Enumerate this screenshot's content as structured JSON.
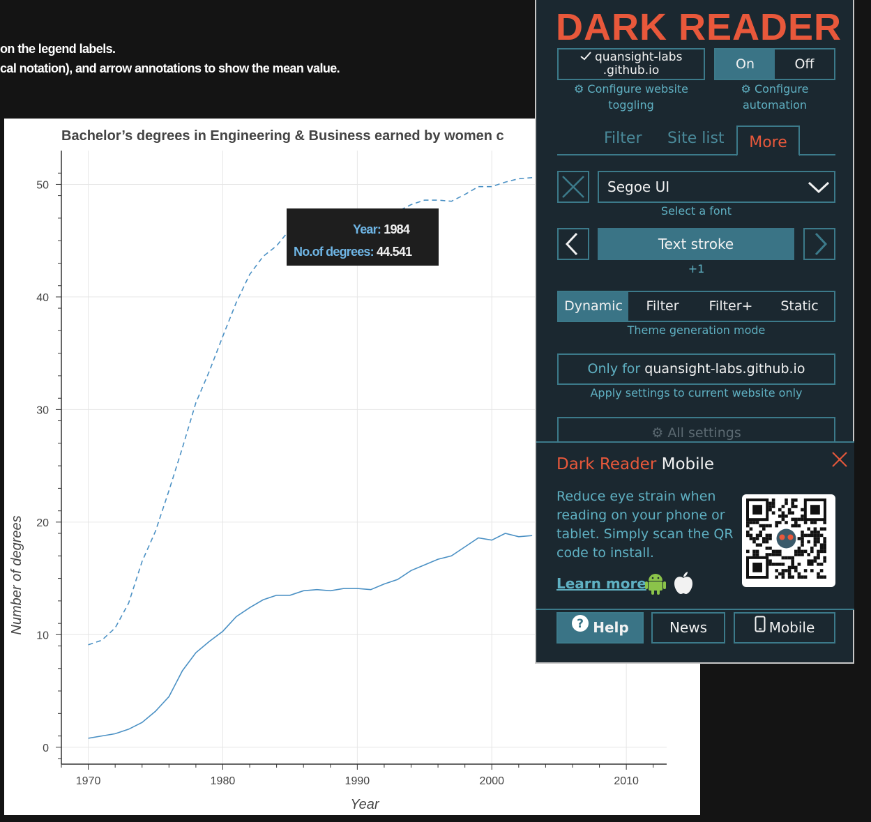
{
  "page": {
    "line1": "on the legend labels.",
    "line2": "cal notation), and arrow annotations to show the mean value."
  },
  "chart_data": {
    "type": "line",
    "title": "Bachelor’s degrees in Engineering & Business earned by women c",
    "xlabel": "Year",
    "ylabel": "Number of degrees",
    "xlim": [
      1968,
      2013
    ],
    "ylim": [
      -1.5,
      53
    ],
    "xticks": [
      1970,
      1980,
      1990,
      2000,
      2010
    ],
    "yticks": [
      0,
      10,
      20,
      30,
      40,
      50
    ],
    "grid": true,
    "x": [
      1970,
      1971,
      1972,
      1973,
      1974,
      1975,
      1976,
      1977,
      1978,
      1979,
      1980,
      1981,
      1982,
      1983,
      1984,
      1985,
      1986,
      1987,
      1988,
      1989,
      1990,
      1991,
      1992,
      1993,
      1994,
      1995,
      1996,
      1997,
      1998,
      1999,
      2000,
      2001,
      2002,
      2003
    ],
    "series": [
      {
        "style": "dashed",
        "values": [
          9.1,
          9.5,
          10.6,
          12.8,
          16.5,
          19.2,
          22.8,
          26.6,
          30.6,
          33.4,
          36.5,
          39.5,
          42.0,
          43.6,
          44.541,
          46.0,
          46.6,
          46.8,
          46.8,
          46.8,
          46.9,
          47.2,
          47.4,
          47.6,
          48.2,
          48.6,
          48.6,
          48.5,
          49.1,
          49.8,
          49.8,
          50.2,
          50.5,
          50.6
        ]
      },
      {
        "style": "solid",
        "values": [
          0.8,
          1.0,
          1.2,
          1.6,
          2.2,
          3.2,
          4.5,
          6.8,
          8.4,
          9.4,
          10.3,
          11.6,
          12.4,
          13.1,
          13.5,
          13.5,
          13.9,
          14.0,
          13.9,
          14.1,
          14.1,
          14.0,
          14.5,
          14.9,
          15.7,
          16.2,
          16.7,
          17.0,
          17.8,
          18.6,
          18.4,
          19.0,
          18.7,
          18.8
        ]
      }
    ],
    "line_color": "#4a90c4",
    "tooltip": {
      "year_key": "Year:",
      "year_val": "1984",
      "deg_key": "No.of degrees:",
      "deg_val": "44.541"
    }
  },
  "dark_reader": {
    "logo": "DARK READER",
    "site_line1": "quansight-labs",
    "site_line2": ".github.io",
    "on": "On",
    "off": "Off",
    "configure_toggling_1": "Configure website",
    "configure_toggling_2": "toggling",
    "configure_auto_1": "Configure",
    "configure_auto_2": "automation",
    "tabs": [
      "Filter",
      "Site list",
      "More"
    ],
    "font_value": "Segoe UI",
    "font_hint": "Select a font",
    "text_stroke": "Text stroke",
    "stroke_value": "+1",
    "modes": [
      "Dynamic",
      "Filter",
      "Filter+",
      "Static"
    ],
    "mode_hint": "Theme generation mode",
    "only_for": "Only for",
    "only_site": "quansight-labs.github.io",
    "only_hint": "Apply settings to current website only",
    "all_settings": "All settings",
    "mobile_title_a": "Dark Reader",
    "mobile_title_b": " Mobile",
    "mobile_text": "Reduce eye strain when reading on your phone or tablet. Simply scan the QR code to install.",
    "learn_more": "Learn more",
    "help": "Help",
    "news": "News",
    "mobile_btn": "Mobile",
    "colors": {
      "accent": "#e8583b",
      "border": "#3c7a8a",
      "active": "#3a7486",
      "bg": "#1b2830",
      "muted": "#5fb0c2"
    }
  }
}
